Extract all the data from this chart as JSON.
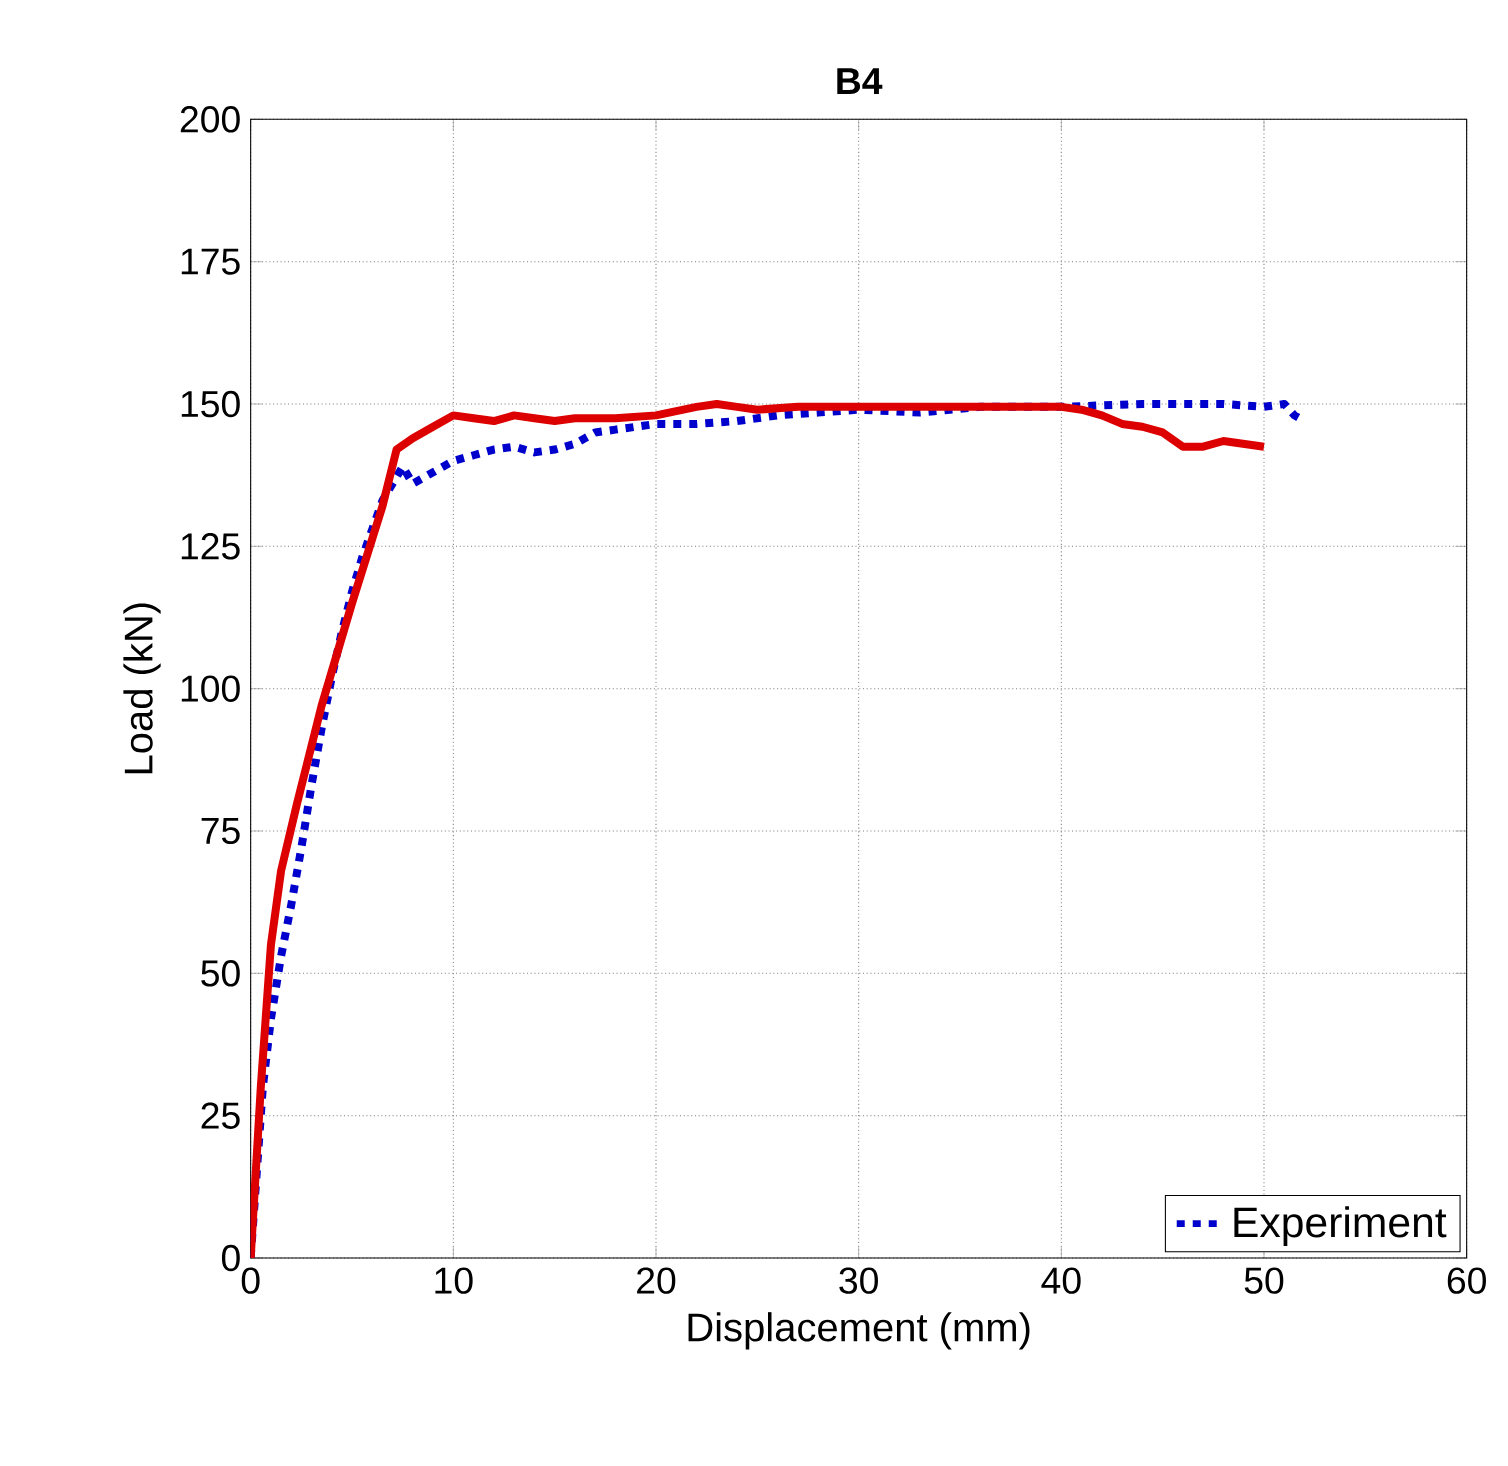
{
  "chart_data": {
    "type": "line",
    "title": "B4",
    "xlabel": "Displacement (mm)",
    "ylabel": "Load (kN)",
    "xlim": [
      0,
      60
    ],
    "ylim": [
      0,
      200
    ],
    "xticks": [
      0,
      10,
      20,
      30,
      40,
      50,
      60
    ],
    "yticks": [
      0,
      25,
      50,
      75,
      100,
      125,
      150,
      175,
      200
    ],
    "grid": true,
    "legend": "bottom right",
    "series": [
      {
        "name": "Experiment",
        "color": "#0000cc",
        "line_style": "dashed",
        "x": [
          0,
          0.3,
          0.6,
          1,
          1.5,
          2,
          2.5,
          3,
          3.5,
          4,
          4.5,
          5,
          5.5,
          6,
          6.5,
          7,
          7.5,
          8,
          9,
          10,
          11,
          12,
          13,
          14,
          15,
          16,
          17,
          18,
          20,
          22,
          24,
          26,
          28,
          30,
          33,
          36,
          40,
          44,
          48,
          50,
          51,
          51.5,
          52
        ],
        "values": [
          0,
          15,
          30,
          42,
          53,
          62,
          72,
          83,
          93,
          102,
          110,
          117,
          123,
          128,
          133,
          136,
          139,
          136,
          138,
          140,
          141,
          142,
          142.5,
          141.5,
          142,
          143,
          145,
          145.5,
          146.5,
          146.5,
          147,
          148,
          148.5,
          149,
          148.5,
          149.5,
          149.5,
          150,
          150,
          149.5,
          150,
          148,
          147
        ]
      },
      {
        "color": "#dd0000",
        "line_style": "solid",
        "x": [
          0,
          0.5,
          1,
          1.5,
          2.3,
          3.5,
          5,
          6.5,
          7.2,
          8,
          9,
          10,
          11,
          12,
          13,
          14,
          15,
          16,
          18,
          20,
          22,
          23,
          24,
          25,
          27,
          30,
          35,
          38,
          40,
          41,
          42,
          43,
          44,
          45,
          46,
          47,
          48,
          49,
          50
        ],
        "values": [
          0,
          30,
          55,
          68,
          80,
          97,
          115,
          132,
          142,
          144,
          146,
          148,
          147.5,
          147,
          148,
          147.5,
          147,
          147.5,
          147.5,
          148,
          149.5,
          150,
          149.5,
          149,
          149.5,
          149.5,
          149.5,
          149.5,
          149.5,
          149,
          148,
          146.5,
          146,
          145,
          142.5,
          142.5,
          143.5,
          143,
          142.5
        ]
      }
    ]
  }
}
